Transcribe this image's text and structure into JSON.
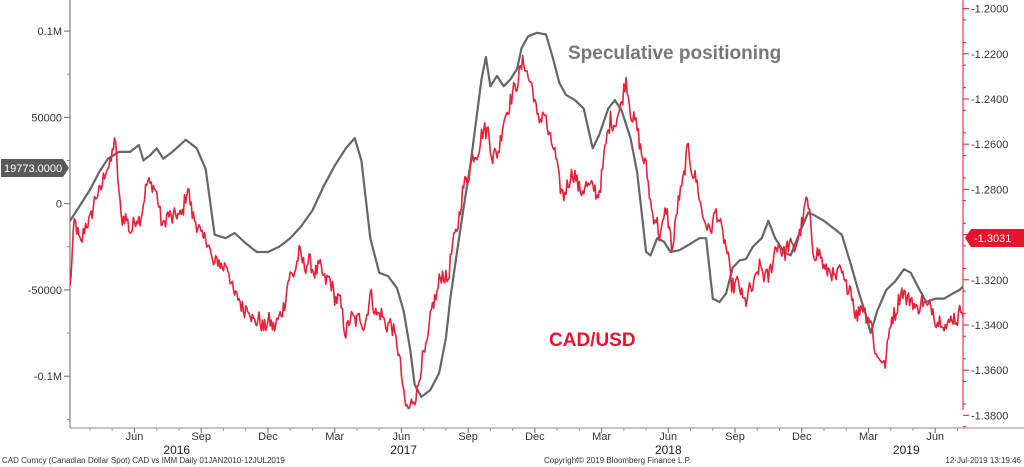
{
  "chart_data": {
    "type": "line",
    "annotations": {
      "speculative": "Speculative positioning",
      "cadusd": "CAD/USD"
    },
    "left_axis": {
      "ticks": [
        {
          "value": 100000,
          "label": "0.1M"
        },
        {
          "value": 50000,
          "label": "50000"
        },
        {
          "value": 0,
          "label": "0"
        },
        {
          "value": -50000,
          "label": "-50000"
        },
        {
          "value": -100000,
          "label": "-0.1M"
        }
      ],
      "range": [
        -130000,
        118000
      ]
    },
    "right_axis": {
      "ticks": [
        {
          "value": -1.2,
          "label": "-1.2000"
        },
        {
          "value": -1.22,
          "label": "-1.2200"
        },
        {
          "value": -1.24,
          "label": "-1.2400"
        },
        {
          "value": -1.26,
          "label": "-1.2600"
        },
        {
          "value": -1.28,
          "label": "-1.2800"
        },
        {
          "value": -1.3,
          "label": "-1.3000"
        },
        {
          "value": -1.32,
          "label": "-1.3200"
        },
        {
          "value": -1.34,
          "label": "-1.3400"
        },
        {
          "value": -1.36,
          "label": "-1.3600"
        },
        {
          "value": -1.38,
          "label": "-1.3800"
        }
      ],
      "range": [
        -1.3856,
        -1.1962
      ]
    },
    "x_axis": {
      "months": [
        {
          "t": 6,
          "label": "Jun"
        },
        {
          "t": 9,
          "label": "Sep"
        },
        {
          "t": 12,
          "label": "Dec"
        },
        {
          "t": 15,
          "label": "Mar"
        },
        {
          "t": 18,
          "label": "Jun"
        },
        {
          "t": 21,
          "label": "Sep"
        },
        {
          "t": 24,
          "label": "Dec"
        },
        {
          "t": 27,
          "label": "Mar"
        },
        {
          "t": 30,
          "label": "Jun"
        },
        {
          "t": 33,
          "label": "Sep"
        },
        {
          "t": 36,
          "label": "Dec"
        },
        {
          "t": 39,
          "label": "Mar"
        },
        {
          "t": 42,
          "label": "Jun"
        }
      ],
      "years": [
        {
          "t": 7.9,
          "label": "2016"
        },
        {
          "t": 18.1,
          "label": "2017"
        },
        {
          "t": 30.0,
          "label": "2018"
        },
        {
          "t": 40.7,
          "label": "2019"
        }
      ],
      "range": [
        3.1,
        43.25
      ]
    },
    "series": [
      {
        "name": "Speculative positioning",
        "axis": "left",
        "color": "#666666",
        "points": [
          [
            3.1,
            -10000
          ],
          [
            3.5,
            -2000
          ],
          [
            4.0,
            8000
          ],
          [
            4.4,
            18000
          ],
          [
            4.8,
            26000
          ],
          [
            5.3,
            30000
          ],
          [
            5.8,
            30000
          ],
          [
            6.2,
            34000
          ],
          [
            6.4,
            25000
          ],
          [
            6.7,
            28000
          ],
          [
            7.0,
            32000
          ],
          [
            7.3,
            26000
          ],
          [
            7.7,
            30000
          ],
          [
            8.3,
            37000
          ],
          [
            8.8,
            32000
          ],
          [
            9.2,
            20000
          ],
          [
            9.6,
            -18000
          ],
          [
            10.1,
            -20000
          ],
          [
            10.5,
            -17000
          ],
          [
            11.0,
            -23000
          ],
          [
            11.5,
            -28000
          ],
          [
            12.0,
            -28000
          ],
          [
            12.5,
            -25000
          ],
          [
            13.0,
            -20000
          ],
          [
            13.5,
            -13000
          ],
          [
            14.0,
            -4000
          ],
          [
            14.5,
            10000
          ],
          [
            15.0,
            22000
          ],
          [
            15.5,
            32000
          ],
          [
            15.9,
            38000
          ],
          [
            16.2,
            25000
          ],
          [
            16.6,
            -20000
          ],
          [
            17.0,
            -40000
          ],
          [
            17.4,
            -42000
          ],
          [
            17.8,
            -49000
          ],
          [
            18.1,
            -62000
          ],
          [
            18.4,
            -85000
          ],
          [
            18.6,
            -105000
          ],
          [
            18.9,
            -112000
          ],
          [
            19.3,
            -108000
          ],
          [
            19.7,
            -98000
          ],
          [
            20.0,
            -78000
          ],
          [
            20.2,
            -55000
          ],
          [
            20.5,
            -28000
          ],
          [
            20.8,
            -2000
          ],
          [
            21.1,
            22000
          ],
          [
            21.4,
            52000
          ],
          [
            21.6,
            72000
          ],
          [
            21.8,
            85000
          ],
          [
            22.0,
            68000
          ],
          [
            22.3,
            74000
          ],
          [
            22.6,
            68000
          ],
          [
            22.9,
            72000
          ],
          [
            23.2,
            78000
          ],
          [
            23.4,
            90000
          ],
          [
            23.7,
            97000
          ],
          [
            24.1,
            99000
          ],
          [
            24.5,
            98000
          ],
          [
            24.8,
            85000
          ],
          [
            25.1,
            70000
          ],
          [
            25.4,
            63000
          ],
          [
            25.8,
            60000
          ],
          [
            26.2,
            55000
          ],
          [
            26.6,
            32000
          ],
          [
            26.9,
            40000
          ],
          [
            27.3,
            55000
          ],
          [
            27.6,
            60000
          ],
          [
            27.9,
            54000
          ],
          [
            28.3,
            38000
          ],
          [
            28.6,
            18000
          ],
          [
            29.0,
            -28000
          ],
          [
            29.2,
            -30000
          ],
          [
            29.5,
            -20000
          ],
          [
            29.8,
            -22000
          ],
          [
            30.1,
            -28000
          ],
          [
            30.5,
            -27000
          ],
          [
            30.9,
            -24000
          ],
          [
            31.4,
            -20000
          ],
          [
            31.7,
            -20000
          ],
          [
            32.0,
            -55000
          ],
          [
            32.3,
            -57000
          ],
          [
            32.6,
            -52000
          ],
          [
            32.9,
            -37000
          ],
          [
            33.2,
            -33000
          ],
          [
            33.5,
            -32000
          ],
          [
            33.8,
            -25000
          ],
          [
            34.2,
            -20000
          ],
          [
            34.5,
            -10000
          ],
          [
            34.8,
            -20000
          ],
          [
            35.2,
            -28000
          ],
          [
            35.5,
            -30000
          ],
          [
            35.9,
            -17000
          ],
          [
            36.3,
            -5000
          ],
          [
            36.6,
            -7000
          ],
          [
            37.0,
            -10000
          ],
          [
            37.4,
            -14000
          ],
          [
            37.8,
            -18000
          ],
          [
            38.2,
            -35000
          ],
          [
            38.6,
            -53000
          ],
          [
            38.9,
            -65000
          ],
          [
            39.1,
            -75000
          ],
          [
            39.4,
            -62000
          ],
          [
            39.8,
            -50000
          ],
          [
            40.2,
            -45000
          ],
          [
            40.6,
            -38000
          ],
          [
            40.9,
            -40000
          ],
          [
            41.3,
            -50000
          ],
          [
            41.6,
            -57000
          ],
          [
            42.0,
            -55000
          ],
          [
            42.4,
            -55000
          ],
          [
            42.8,
            -52000
          ],
          [
            43.1,
            -50000
          ],
          [
            43.4,
            -46000
          ],
          [
            43.8,
            -42000
          ],
          [
            44.1,
            -32000
          ],
          [
            44.4,
            -4000
          ],
          [
            44.8,
            -4000
          ],
          [
            45.1,
            20000
          ]
        ]
      },
      {
        "name": "CAD/USD",
        "axis": "right",
        "color": "#e8213a",
        "anchors": [
          [
            3.1,
            -1.322
          ],
          [
            3.3,
            -1.296
          ],
          [
            3.6,
            -1.303
          ],
          [
            4.0,
            -1.292
          ],
          [
            4.5,
            -1.278
          ],
          [
            4.9,
            -1.268
          ],
          [
            5.1,
            -1.258
          ],
          [
            5.4,
            -1.291
          ],
          [
            5.8,
            -1.297
          ],
          [
            6.2,
            -1.293
          ],
          [
            6.6,
            -1.278
          ],
          [
            6.8,
            -1.276
          ],
          [
            7.3,
            -1.296
          ],
          [
            7.6,
            -1.291
          ],
          [
            8.0,
            -1.293
          ],
          [
            8.4,
            -1.281
          ],
          [
            8.8,
            -1.297
          ],
          [
            9.2,
            -1.302
          ],
          [
            9.6,
            -1.313
          ],
          [
            10.1,
            -1.313
          ],
          [
            10.6,
            -1.329
          ],
          [
            11.1,
            -1.333
          ],
          [
            11.5,
            -1.339
          ],
          [
            12.0,
            -1.34
          ],
          [
            12.5,
            -1.339
          ],
          [
            12.9,
            -1.322
          ],
          [
            13.4,
            -1.31
          ],
          [
            13.9,
            -1.314
          ],
          [
            14.3,
            -1.316
          ],
          [
            14.7,
            -1.32
          ],
          [
            15.2,
            -1.33
          ],
          [
            15.5,
            -1.342
          ],
          [
            15.9,
            -1.336
          ],
          [
            16.3,
            -1.34
          ],
          [
            16.6,
            -1.328
          ],
          [
            17.0,
            -1.336
          ],
          [
            17.4,
            -1.339
          ],
          [
            17.8,
            -1.346
          ],
          [
            18.1,
            -1.372
          ],
          [
            18.4,
            -1.378
          ],
          [
            18.7,
            -1.368
          ],
          [
            19.1,
            -1.35
          ],
          [
            19.4,
            -1.333
          ],
          [
            19.7,
            -1.32
          ],
          [
            20.1,
            -1.318
          ],
          [
            20.5,
            -1.296
          ],
          [
            20.9,
            -1.275
          ],
          [
            21.3,
            -1.265
          ],
          [
            21.6,
            -1.257
          ],
          [
            21.9,
            -1.252
          ],
          [
            22.1,
            -1.268
          ],
          [
            22.4,
            -1.26
          ],
          [
            22.8,
            -1.242
          ],
          [
            23.1,
            -1.237
          ],
          [
            23.3,
            -1.227
          ],
          [
            23.5,
            -1.225
          ],
          [
            23.8,
            -1.231
          ],
          [
            24.1,
            -1.248
          ],
          [
            24.4,
            -1.247
          ],
          [
            24.7,
            -1.257
          ],
          [
            25.0,
            -1.27
          ],
          [
            25.3,
            -1.285
          ],
          [
            25.6,
            -1.272
          ],
          [
            25.9,
            -1.277
          ],
          [
            26.2,
            -1.281
          ],
          [
            26.5,
            -1.277
          ],
          [
            26.8,
            -1.284
          ],
          [
            27.1,
            -1.268
          ],
          [
            27.4,
            -1.247
          ],
          [
            27.6,
            -1.253
          ],
          [
            27.9,
            -1.24
          ],
          [
            28.1,
            -1.233
          ],
          [
            28.4,
            -1.248
          ],
          [
            28.7,
            -1.258
          ],
          [
            29.0,
            -1.272
          ],
          [
            29.3,
            -1.29
          ],
          [
            29.6,
            -1.3
          ],
          [
            29.9,
            -1.29
          ],
          [
            30.2,
            -1.305
          ],
          [
            30.5,
            -1.283
          ],
          [
            30.9,
            -1.263
          ],
          [
            31.2,
            -1.275
          ],
          [
            31.5,
            -1.288
          ],
          [
            31.8,
            -1.3
          ],
          [
            32.1,
            -1.29
          ],
          [
            32.5,
            -1.3
          ],
          [
            32.8,
            -1.32
          ],
          [
            33.2,
            -1.324
          ],
          [
            33.5,
            -1.33
          ],
          [
            33.8,
            -1.322
          ],
          [
            34.2,
            -1.314
          ],
          [
            34.5,
            -1.321
          ],
          [
            34.8,
            -1.305
          ],
          [
            35.1,
            -1.307
          ],
          [
            35.5,
            -1.306
          ],
          [
            35.9,
            -1.302
          ],
          [
            36.2,
            -1.283
          ],
          [
            36.5,
            -1.305
          ],
          [
            36.8,
            -1.31
          ],
          [
            37.2,
            -1.317
          ],
          [
            37.5,
            -1.318
          ],
          [
            37.8,
            -1.318
          ],
          [
            38.2,
            -1.325
          ],
          [
            38.5,
            -1.336
          ],
          [
            38.8,
            -1.331
          ],
          [
            39.1,
            -1.34
          ],
          [
            39.4,
            -1.354
          ],
          [
            39.7,
            -1.358
          ],
          [
            40.0,
            -1.34
          ],
          [
            40.3,
            -1.33
          ],
          [
            40.6,
            -1.325
          ],
          [
            40.9,
            -1.33
          ],
          [
            41.2,
            -1.332
          ],
          [
            41.6,
            -1.33
          ],
          [
            42.0,
            -1.336
          ],
          [
            42.4,
            -1.34
          ],
          [
            42.8,
            -1.338
          ],
          [
            43.2,
            -1.333
          ],
          [
            43.5,
            -1.343
          ],
          [
            43.8,
            -1.347
          ],
          [
            44.1,
            -1.345
          ],
          [
            44.4,
            -1.335
          ],
          [
            44.6,
            -1.325
          ],
          [
            44.9,
            -1.315
          ],
          [
            45.2,
            -1.313
          ],
          [
            45.6,
            -1.303
          ]
        ]
      }
    ],
    "current_labels": {
      "left": "19773.0000",
      "left_value": 19773,
      "right": "-1.3031",
      "right_value": -1.3031
    }
  },
  "footer": {
    "left": "CAD Curncy (Canadian Dollar Spot) CAD vs IMM  Daily 01JAN2010-12JUL2019",
    "center": "Copyright© 2019 Bloomberg Finance L.P.",
    "right": "12-Jul-2019 13:19:46"
  }
}
